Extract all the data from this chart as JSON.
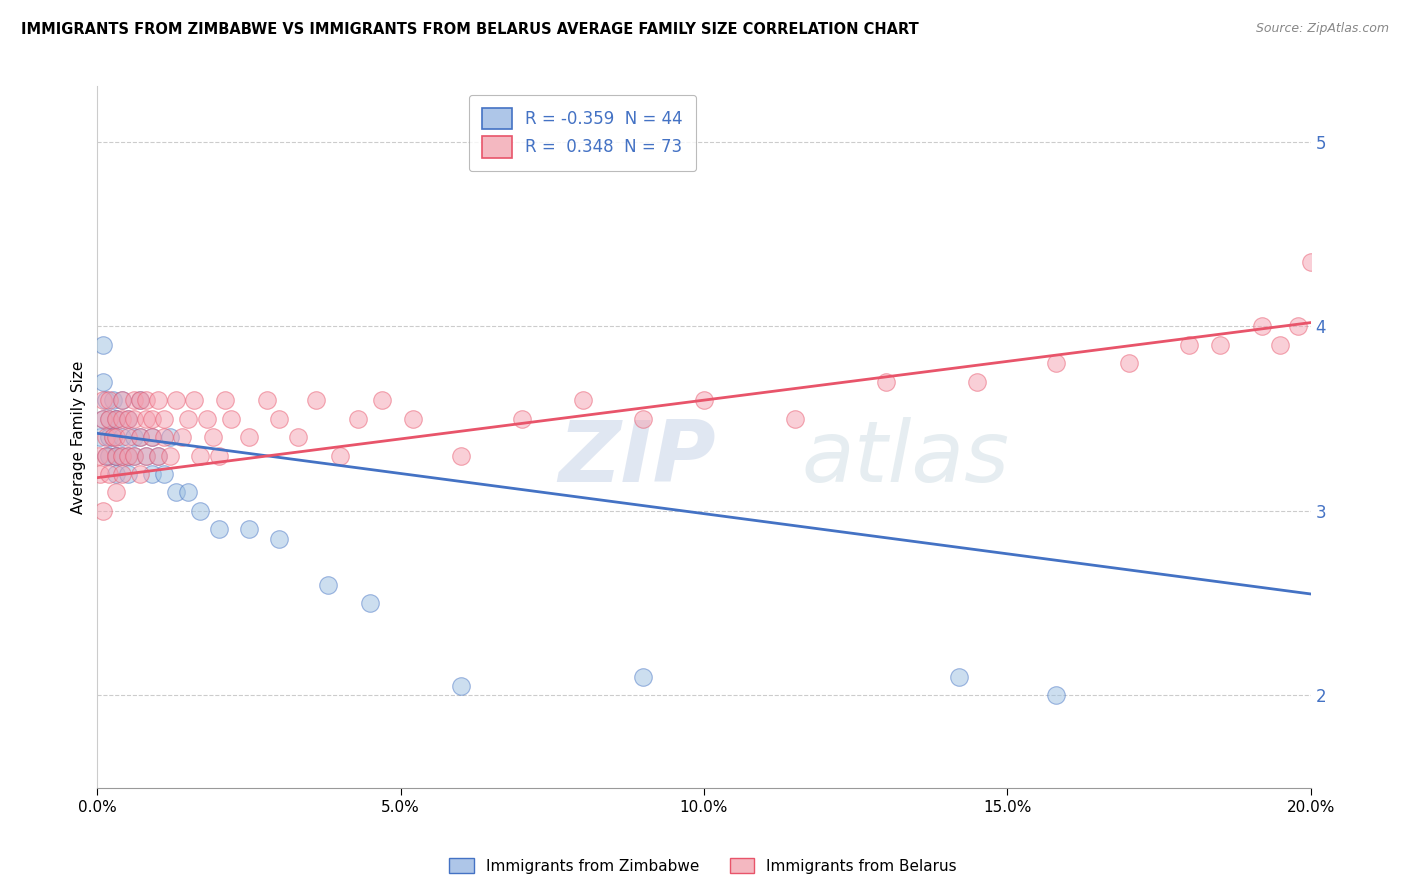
{
  "title": "IMMIGRANTS FROM ZIMBABWE VS IMMIGRANTS FROM BELARUS AVERAGE FAMILY SIZE CORRELATION CHART",
  "source": "Source: ZipAtlas.com",
  "ylabel": "Average Family Size",
  "xlim": [
    0.0,
    0.2
  ],
  "ylim": [
    1.5,
    5.3
  ],
  "yticks": [
    2.0,
    3.0,
    4.0,
    5.0
  ],
  "xticks": [
    0.0,
    0.05,
    0.1,
    0.15,
    0.2
  ],
  "xticklabels": [
    "0.0%",
    "5.0%",
    "10.0%",
    "15.0%",
    "20.0%"
  ],
  "legend1_label": "R = -0.359  N = 44",
  "legend2_label": "R =  0.348  N = 73",
  "legend1_color": "#aec6e8",
  "legend2_color": "#f4b8c1",
  "line1_color": "#4472c4",
  "line2_color": "#e8546a",
  "scatter1_color": "#9bbfe0",
  "scatter2_color": "#f4a0b0",
  "watermark_zip": "ZIP",
  "watermark_atlas": "atlas",
  "zim_trend_x0": 0.0,
  "zim_trend_y0": 3.42,
  "zim_trend_x1": 0.2,
  "zim_trend_y1": 2.55,
  "bel_trend_x0": 0.0,
  "bel_trend_y0": 3.18,
  "bel_trend_x1": 0.2,
  "bel_trend_y1": 4.02,
  "zimbabwe_x": [
    0.0005,
    0.001,
    0.001,
    0.001,
    0.0015,
    0.0015,
    0.002,
    0.002,
    0.002,
    0.0025,
    0.0025,
    0.003,
    0.003,
    0.003,
    0.003,
    0.003,
    0.004,
    0.004,
    0.004,
    0.005,
    0.005,
    0.005,
    0.006,
    0.006,
    0.007,
    0.007,
    0.008,
    0.009,
    0.009,
    0.01,
    0.011,
    0.012,
    0.013,
    0.015,
    0.017,
    0.02,
    0.025,
    0.03,
    0.038,
    0.045,
    0.06,
    0.09,
    0.142,
    0.158
  ],
  "zimbabwe_y": [
    3.4,
    3.9,
    3.7,
    3.5,
    3.6,
    3.3,
    3.5,
    3.4,
    3.3,
    3.6,
    3.4,
    3.5,
    3.3,
    3.2,
    3.5,
    3.3,
    3.6,
    3.4,
    3.3,
    3.5,
    3.3,
    3.2,
    3.4,
    3.3,
    3.6,
    3.4,
    3.3,
    3.4,
    3.2,
    3.3,
    3.2,
    3.4,
    3.1,
    3.1,
    3.0,
    2.9,
    2.9,
    2.85,
    2.6,
    2.5,
    2.05,
    2.1,
    2.1,
    2.0
  ],
  "belarus_x": [
    0.0003,
    0.0005,
    0.001,
    0.001,
    0.001,
    0.0015,
    0.0015,
    0.002,
    0.002,
    0.002,
    0.0025,
    0.003,
    0.003,
    0.003,
    0.003,
    0.004,
    0.004,
    0.004,
    0.004,
    0.005,
    0.005,
    0.005,
    0.006,
    0.006,
    0.006,
    0.007,
    0.007,
    0.007,
    0.008,
    0.008,
    0.008,
    0.009,
    0.009,
    0.01,
    0.01,
    0.011,
    0.011,
    0.012,
    0.013,
    0.014,
    0.015,
    0.016,
    0.017,
    0.018,
    0.019,
    0.02,
    0.021,
    0.022,
    0.025,
    0.028,
    0.03,
    0.033,
    0.036,
    0.04,
    0.043,
    0.047,
    0.052,
    0.06,
    0.07,
    0.08,
    0.09,
    0.1,
    0.115,
    0.13,
    0.145,
    0.158,
    0.17,
    0.18,
    0.185,
    0.192,
    0.195,
    0.198,
    0.2
  ],
  "belarus_y": [
    3.3,
    3.2,
    3.5,
    3.6,
    3.0,
    3.3,
    3.4,
    3.5,
    3.2,
    3.6,
    3.4,
    3.3,
    3.5,
    3.1,
    3.4,
    3.6,
    3.3,
    3.5,
    3.2,
    3.5,
    3.4,
    3.3,
    3.5,
    3.6,
    3.3,
    3.4,
    3.6,
    3.2,
    3.5,
    3.3,
    3.6,
    3.4,
    3.5,
    3.3,
    3.6,
    3.4,
    3.5,
    3.3,
    3.6,
    3.4,
    3.5,
    3.6,
    3.3,
    3.5,
    3.4,
    3.3,
    3.6,
    3.5,
    3.4,
    3.6,
    3.5,
    3.4,
    3.6,
    3.3,
    3.5,
    3.6,
    3.5,
    3.3,
    3.5,
    3.6,
    3.5,
    3.6,
    3.5,
    3.7,
    3.7,
    3.8,
    3.8,
    3.9,
    3.9,
    4.0,
    3.9,
    4.0,
    4.35
  ]
}
